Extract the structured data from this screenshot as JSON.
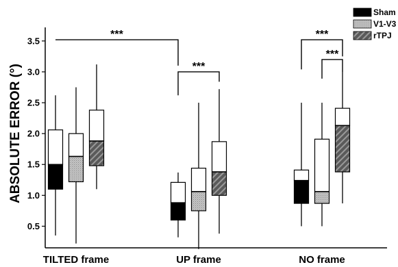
{
  "chart_data": {
    "type": "boxplot",
    "ylabel": "ABSOLUTE ERROR (°)",
    "xlabel": "",
    "ylim": [
      0.15,
      3.72
    ],
    "yticks": [
      "0.5",
      "1.0",
      "1.5",
      "2.0",
      "2.5",
      "3.0",
      "3.5"
    ],
    "categories": [
      "TILTED frame",
      "UP frame",
      "NO frame"
    ],
    "legend_position": "top-right",
    "series": [
      {
        "name": "Sham",
        "color": "#000000",
        "pattern": "solid",
        "boxes": [
          {
            "min": 0.35,
            "q1": 1.1,
            "median": 1.5,
            "q3": 2.06,
            "max": 2.62
          },
          {
            "min": 0.32,
            "q1": 0.6,
            "median": 0.88,
            "q3": 1.21,
            "max": 1.37
          },
          {
            "min": 0.5,
            "q1": 0.87,
            "median": 1.24,
            "q3": 1.41,
            "max": 2.5
          }
        ]
      },
      {
        "name": "V1-V3",
        "color": "#b0b0b0",
        "pattern": "dots",
        "boxes": [
          {
            "min": 0.22,
            "q1": 1.22,
            "median": 1.63,
            "q3": 2.0,
            "max": 2.75
          },
          {
            "min": 0.13,
            "q1": 0.75,
            "median": 1.06,
            "q3": 1.44,
            "max": 2.5
          },
          {
            "min": 0.5,
            "q1": 0.87,
            "median": 1.06,
            "q3": 1.91,
            "max": 2.5
          }
        ]
      },
      {
        "name": "rTPJ",
        "color": "#666666",
        "pattern": "stripes",
        "boxes": [
          {
            "min": 1.1,
            "q1": 1.48,
            "median": 1.88,
            "q3": 2.38,
            "max": 3.12
          },
          {
            "min": 0.38,
            "q1": 1.0,
            "median": 1.38,
            "q3": 1.87,
            "max": 2.72
          },
          {
            "min": 0.87,
            "q1": 1.38,
            "median": 2.13,
            "q3": 2.41,
            "max": 3.0
          }
        ]
      }
    ],
    "annotations": [
      {
        "text": "***",
        "from": {
          "category": 0,
          "series": 0
        },
        "to": {
          "category": 1,
          "series": 0
        },
        "y": 3.52,
        "tick_to": 3.1
      },
      {
        "text": "***",
        "from": {
          "category": 1,
          "series": 0
        },
        "to": {
          "category": 1,
          "series": 2
        },
        "y": 3.0,
        "tick_from": 2.62,
        "tick_to": 2.84
      },
      {
        "text": "***",
        "from": {
          "category": 2,
          "series": 0
        },
        "to": {
          "category": 2,
          "series": 2
        },
        "y": 3.52,
        "tick_from": 3.04,
        "tick_to": 3.25
      },
      {
        "text": "***",
        "from": {
          "category": 2,
          "series": 1
        },
        "to": {
          "category": 2,
          "series": 2
        },
        "y": 3.2,
        "tick_from": 2.89,
        "tick_to": 3.0
      }
    ]
  }
}
